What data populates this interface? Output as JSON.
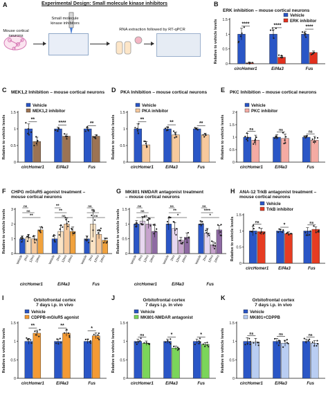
{
  "figure": {
    "panel_a": {
      "letter": "A",
      "title": "Experimental Design: Small molecule kinase inhibitors",
      "label_neurons": "Mouse cortical neurons",
      "label_inhibitors": "Small molecule kinase inhibitors",
      "label_rna": "RNA extraction followed by RT-qPCR"
    }
  },
  "colors": {
    "vehicle": "#2a56c6",
    "erk": "#e2311f",
    "mek": "#9c7353",
    "pka": "#f7c99c",
    "pkc": "#f4aba3",
    "chpg": "#f1a23d",
    "mk801": "#c6a3cc",
    "ana12": "#e63c22",
    "cdppb": "#f39a34",
    "green": "#7bd55a",
    "light_blue": "#b9cdf2"
  },
  "chart_data": [
    {
      "id": "B",
      "letter": "B",
      "type": "bar",
      "title": "ERK inhibition – mouse cortical neurons",
      "ylabel": "Relative to vehicle levels",
      "ylim": [
        0,
        1.5
      ],
      "yticks": [
        0,
        0.5,
        1,
        1.5
      ],
      "categories": [
        "circHomer1",
        "Eif4a3",
        "Fus"
      ],
      "series": [
        {
          "name": "Vehicle",
          "color": "#2a56c6",
          "values": [
            1.0,
            1.0,
            1.0
          ],
          "errors": [
            0.2,
            0.15,
            0.1
          ]
        },
        {
          "name": "ERK inhibitor",
          "color": "#e2311f",
          "values": [
            0.03,
            0.22,
            0.38
          ],
          "errors": [
            0.02,
            0.05,
            0.05
          ]
        }
      ],
      "significance": [
        "****",
        "****",
        "****"
      ],
      "legend": "top-right"
    },
    {
      "id": "C",
      "letter": "C",
      "type": "bar",
      "title": "MEK1,2 Inhibition – mouse cortical neurons",
      "ylabel": "Relative to vehicle levels",
      "ylim": [
        0,
        1.5
      ],
      "yticks": [
        0,
        0.5,
        1,
        1.5
      ],
      "categories": [
        "circHomer1",
        "Eif4a3",
        "Fus"
      ],
      "series": [
        {
          "name": "Vehicle",
          "color": "#2a56c6",
          "values": [
            1.0,
            1.0,
            1.0
          ],
          "errors": [
            0.15,
            0.05,
            0.03
          ]
        },
        {
          "name": "MEK1,2 inhibitor",
          "color": "#9c7353",
          "values": [
            0.62,
            0.78,
            0.78
          ],
          "errors": [
            0.13,
            0.06,
            0.04
          ]
        }
      ],
      "significance": [
        "**",
        "****",
        "**"
      ],
      "legend": "top-left"
    },
    {
      "id": "D",
      "letter": "D",
      "type": "bar",
      "title": "PKA Inhibition – mouse cortical neurons",
      "ylabel": "Relative to vehicle levels",
      "ylim": [
        0,
        1.5
      ],
      "yticks": [
        0,
        0.5,
        1,
        1.5
      ],
      "categories": [
        "circHomer1",
        "Eif4a3",
        "Fus"
      ],
      "series": [
        {
          "name": "Vehicle",
          "color": "#2a56c6",
          "values": [
            1.0,
            1.0,
            1.0
          ],
          "errors": [
            0.15,
            0.06,
            0.03
          ]
        },
        {
          "name": "PKA inhibitor",
          "color": "#f7c99c",
          "values": [
            0.52,
            0.82,
            0.82
          ],
          "errors": [
            0.1,
            0.08,
            0.05
          ]
        }
      ],
      "significance": [
        "**",
        "**",
        "**"
      ],
      "legend": "top-left"
    },
    {
      "id": "E",
      "letter": "E",
      "type": "bar",
      "title": "PKC Inhibition – mouse cortical neurons",
      "ylabel": "Relative to vehicle levels",
      "ylim": [
        0,
        2.0
      ],
      "yticks": [
        0,
        0.5,
        1,
        1.5,
        2
      ],
      "categories": [
        "circHomer1",
        "Eif4a3",
        "Fus"
      ],
      "series": [
        {
          "name": "Vehicle",
          "color": "#2a56c6",
          "values": [
            1.0,
            1.0,
            1.0
          ],
          "errors": [
            0.15,
            0.1,
            0.05
          ]
        },
        {
          "name": "PKC inhibitor",
          "color": "#f4aba3",
          "values": [
            0.88,
            0.95,
            0.88
          ],
          "errors": [
            0.2,
            0.18,
            0.15
          ]
        }
      ],
      "significance": [
        "ns",
        "ns",
        "ns"
      ],
      "legend": "top-left"
    },
    {
      "id": "F",
      "letter": "F",
      "type": "bar",
      "title": "CHPG mGluR5 agonist treatment –\nmouse cortical neurons",
      "ylabel": "Relative to vehicle levels",
      "ylim": [
        0,
        3
      ],
      "yticks": [
        0,
        1,
        2,
        3
      ],
      "categories": [
        "circHomer1",
        "Eif4a3",
        "Fus"
      ],
      "conditions": [
        "Vehicle",
        "2hrs",
        "12hrs",
        "24hrs"
      ],
      "series": [
        {
          "name": "Vehicle",
          "color": "#2a56c6",
          "values": [
            1.0,
            1.0,
            1.0
          ],
          "errors": [
            0.2,
            0.25,
            0.2
          ]
        },
        {
          "name": "2hrs",
          "color": "#fbe3c4",
          "values": [
            1.1,
            1.5,
            2.0
          ],
          "errors": [
            0.2,
            0.4,
            0.9
          ]
        },
        {
          "name": "12hrs",
          "color": "#f7c99c",
          "values": [
            1.0,
            2.0,
            1.3
          ],
          "errors": [
            0.2,
            0.4,
            0.3
          ]
        },
        {
          "name": "24hrs",
          "color": "#f1a23d",
          "values": [
            1.6,
            1.5,
            0.9
          ],
          "errors": [
            0.2,
            0.3,
            0.15
          ]
        }
      ],
      "significance_groups": [
        [
          "ns",
          "ns",
          "**"
        ],
        [
          "**",
          "**",
          "ns"
        ],
        [
          "ns",
          "**",
          "ns"
        ]
      ]
    },
    {
      "id": "G",
      "letter": "G",
      "type": "bar",
      "title": "MK801 NMDAR antagonist treatment\n– mouse cortical neurons",
      "ylabel": "Relative to vehicle levels",
      "ylim": [
        0,
        1.5
      ],
      "yticks": [
        0,
        0.5,
        1,
        1.5
      ],
      "categories": [
        "circHomer1",
        "Eif4a3",
        "Fus"
      ],
      "conditions": [
        "Vehicle",
        "2hrs",
        "12hrs",
        "24hrs"
      ],
      "series": [
        {
          "name": "Vehicle",
          "color": "#2a56c6",
          "values": [
            1.0,
            1.0,
            1.0
          ],
          "errors": [
            0.12,
            0.2,
            0.1
          ]
        },
        {
          "name": "2hrs",
          "color": "#e7d7ef",
          "values": [
            1.1,
            0.85,
            0.7
          ],
          "errors": [
            0.15,
            0.2,
            0.15
          ]
        },
        {
          "name": "12hrs",
          "color": "#c6a3cc",
          "values": [
            1.0,
            0.45,
            0.3
          ],
          "errors": [
            0.15,
            0.1,
            0.1
          ]
        },
        {
          "name": "24hrs",
          "color": "#8e6aa3",
          "values": [
            0.75,
            0.55,
            0.8
          ],
          "errors": [
            0.2,
            0.15,
            0.15
          ]
        }
      ],
      "significance_groups": [
        [
          "ns",
          "ns",
          "ns"
        ],
        [
          "ns",
          "**",
          "*"
        ],
        [
          "ns",
          "****",
          "*"
        ]
      ]
    },
    {
      "id": "H",
      "letter": "H",
      "type": "bar",
      "title": "ANA-12 TrkB antagonist treatment –\nmouse cortical neurons",
      "ylabel": "Relative to vehicle levels",
      "ylim": [
        0,
        1.5
      ],
      "yticks": [
        0,
        0.5,
        1,
        1.5
      ],
      "categories": [
        "circHomer1",
        "Eif4a3",
        "Fus"
      ],
      "series": [
        {
          "name": "Vehicle",
          "color": "#2a56c6",
          "values": [
            1.0,
            1.0,
            1.0
          ],
          "errors": [
            0.15,
            0.05,
            0.1
          ]
        },
        {
          "name": "TrkB inhibitor",
          "color": "#e63c22",
          "values": [
            0.98,
            0.92,
            1.05
          ],
          "errors": [
            0.1,
            0.05,
            0.08
          ]
        }
      ],
      "significance": [
        "ns",
        "*",
        "ns"
      ],
      "legend": "top-right"
    },
    {
      "id": "I",
      "letter": "I",
      "type": "bar",
      "title": "Orbitofrontal cortex\n7 days i.p. in vivo",
      "ylabel": "Relative to vehicle levels",
      "ylim": [
        0,
        1.5
      ],
      "yticks": [
        0,
        0.5,
        1,
        1.5
      ],
      "categories": [
        "circHomer1",
        "Eif4a3",
        "Fus"
      ],
      "series": [
        {
          "name": "Vehicle",
          "color": "#2a56c6",
          "values": [
            1.0,
            1.0,
            1.0
          ],
          "errors": [
            0.08,
            0.06,
            0.06
          ]
        },
        {
          "name": "CDPPB-mGluR5 agonist",
          "color": "#f39a34",
          "values": [
            1.22,
            1.22,
            1.15
          ],
          "errors": [
            0.08,
            0.08,
            0.08
          ]
        }
      ],
      "significance": [
        "**",
        "**",
        "*"
      ],
      "legend": "top-left"
    },
    {
      "id": "J",
      "letter": "J",
      "type": "bar",
      "title": "Orbitofrontal cortex\n7 days i.p. in vivo",
      "ylabel": "Relative to vehicle levels",
      "ylim": [
        0,
        1.5
      ],
      "yticks": [
        0,
        0.5,
        1,
        1.5
      ],
      "categories": [
        "circHomer1",
        "Eif4a3",
        "Fus"
      ],
      "series": [
        {
          "name": "Vehicle",
          "color": "#2a56c6",
          "values": [
            1.0,
            1.0,
            1.0
          ],
          "errors": [
            0.06,
            0.06,
            0.06
          ]
        },
        {
          "name": "MK801-NMDAR antagonist",
          "color": "#7bd55a",
          "values": [
            0.95,
            0.82,
            0.92
          ],
          "errors": [
            0.06,
            0.05,
            0.05
          ]
        }
      ],
      "significance": [
        "ns",
        "*",
        "*"
      ],
      "legend": "top-left"
    },
    {
      "id": "K",
      "letter": "K",
      "type": "bar",
      "title": "Orbitofrontal cortex\n7 days i.p. in vivo",
      "ylabel": "Relative to vehicle levels",
      "ylim": [
        0,
        1.5
      ],
      "yticks": [
        0,
        0.5,
        1,
        1.5
      ],
      "categories": [
        "circHomer1",
        "Eif4a3",
        "Fus"
      ],
      "series": [
        {
          "name": "Vehicle",
          "color": "#2a56c6",
          "values": [
            1.0,
            1.0,
            1.0
          ],
          "errors": [
            0.1,
            0.08,
            0.06
          ]
        },
        {
          "name": "MK801+CDPPB",
          "color": "#b9cdf2",
          "values": [
            0.98,
            0.95,
            0.95
          ],
          "errors": [
            0.1,
            0.08,
            0.07
          ]
        }
      ],
      "significance": [
        "ns",
        "ns",
        "ns"
      ],
      "legend": "top-left"
    }
  ]
}
